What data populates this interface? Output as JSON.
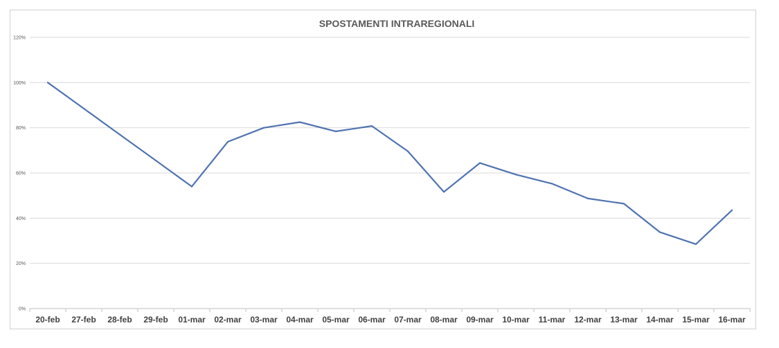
{
  "chart_data": {
    "type": "line",
    "title": "SPOSTAMENTI INTRAREGIONALI",
    "xlabel": "",
    "ylabel": "",
    "categories": [
      "20-feb",
      "27-feb",
      "28-feb",
      "29-feb",
      "01-mar",
      "02-mar",
      "03-mar",
      "04-mar",
      "05-mar",
      "06-mar",
      "07-mar",
      "08-mar",
      "09-mar",
      "10-mar",
      "11-mar",
      "12-mar",
      "13-mar",
      "14-mar",
      "15-mar",
      "16-mar"
    ],
    "series": [
      {
        "values": [
          100,
          88.5,
          77,
          65.5,
          54,
          73.8,
          80,
          82.5,
          78.4,
          80.8,
          69.6,
          51.6,
          64.4,
          59.3,
          55.3,
          48.7,
          46.4,
          33.8,
          28.5,
          43.5
        ]
      }
    ],
    "ylim": [
      0,
      120
    ],
    "yticks": [
      0,
      20,
      40,
      60,
      80,
      100,
      120
    ],
    "ytick_format": "percent",
    "grid": true,
    "legend": "none",
    "colors": {
      "line": "#4f72b0",
      "grid": "#d9d9d9",
      "highlight_tick": "#c00000",
      "tick": "#404040"
    },
    "highlight_category": "20-feb"
  }
}
